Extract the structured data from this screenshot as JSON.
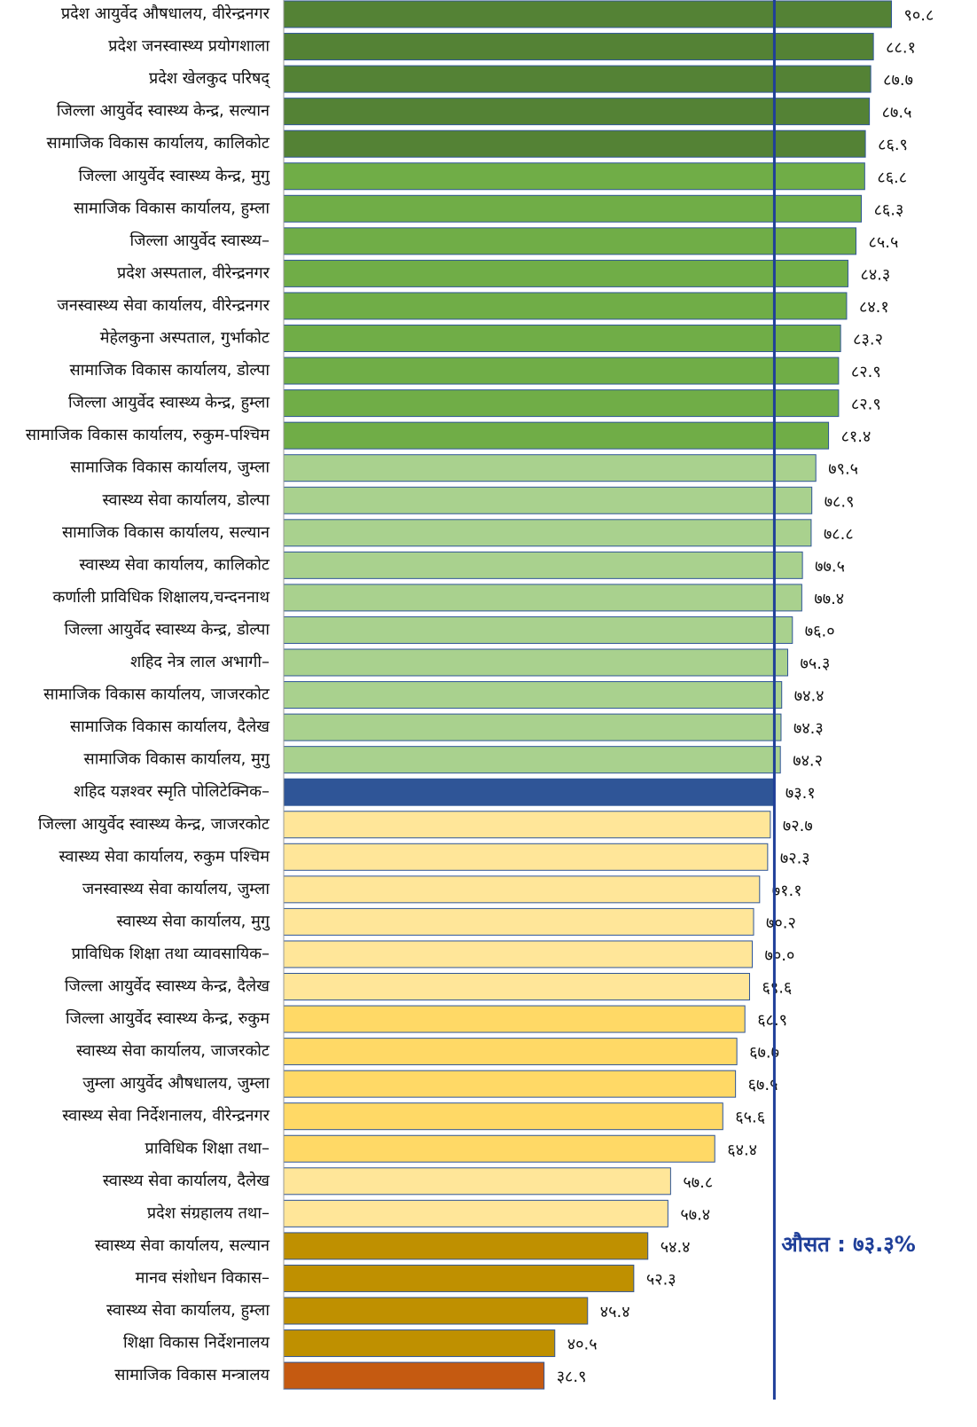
{
  "chart_data": {
    "type": "barh",
    "categories": [
      "प्रदेश आयुर्वेद औषधालय, वीरेन्द्रनगर",
      "प्रदेश जनस्वास्थ्य प्रयोगशाला",
      "प्रदेश खेलकुद परिषद्",
      "जिल्ला आयुर्वेद स्वास्थ्य केन्द्र, सल्यान",
      "सामाजिक विकास कार्यालय, कालिकोट",
      "जिल्ला आयुर्वेद स्वास्थ्य केन्द्र, मुगु",
      "सामाजिक विकास कार्यालय, हुम्ला",
      "जिल्ला आयुर्वेद स्वास्थ्य–",
      "प्रदेश अस्पताल, वीरेन्द्रनगर",
      "जनस्वास्थ्य सेवा कार्यालय, वीरेन्द्रनगर",
      "मेहेलकुना अस्पताल, गुर्भाकोट",
      "सामाजिक विकास कार्यालय, डोल्पा",
      "जिल्ला आयुर्वेद स्वास्थ्य केन्द्र, हुम्ला",
      "सामाजिक विकास कार्यालय, रुकुम-पश्चिम",
      "सामाजिक विकास कार्यालय, जुम्ला",
      "स्वास्थ्य सेवा कार्यालय, डोल्पा",
      "सामाजिक विकास कार्यालय, सल्यान",
      "स्वास्थ्य सेवा कार्यालय, कालिकोट",
      "कर्णाली प्राविधिक शिक्षालय,चन्दननाथ",
      "जिल्ला आयुर्वेद स्वास्थ्य केन्द्र, डोल्पा",
      "शहिद नेत्र लाल अभागी–",
      "सामाजिक विकास कार्यालय, जाजरकोट",
      "सामाजिक विकास कार्यालय, दैलेख",
      "सामाजिक विकास कार्यालय, मुगु",
      "शहिद यज्ञश्वर स्मृति पोलिटेक्निक–",
      "जिल्ला आयुर्वेद स्वास्थ्य केन्द्र, जाजरकोट",
      "स्वास्थ्य सेवा कार्यालय, रुकुम पश्चिम",
      "जनस्वास्थ्य सेवा कार्यालय, जुम्ला",
      "स्वास्थ्य सेवा कार्यालय, मुगु",
      "प्राविधिक शिक्षा तथा व्यावसायिक–",
      "जिल्ला आयुर्वेद स्वास्थ्य केन्द्र, दैलेख",
      "जिल्ला आयुर्वेद स्वास्थ्य केन्द्र, रुकुम",
      "स्वास्थ्य सेवा कार्यालय, जाजरकोट",
      "जुम्ला आयुर्वेद औषधालय, जुम्ला",
      "स्वास्थ्य सेवा निर्देशनालय, वीरेन्द्रनगर",
      "प्राविधिक शिक्षा तथा–",
      "स्वास्थ्य सेवा कार्यालय, दैलेख",
      "प्रदेश संग्रहालय तथा–",
      "स्वास्थ्य सेवा कार्यालय, सल्यान",
      "मानव संशोधन विकास–",
      "स्वास्थ्य सेवा कार्यालय, हुम्ला",
      "शिक्षा विकास निर्देशनालय",
      "सामाजिक विकास मन्त्रालय"
    ],
    "values": [
      90.8,
      88.1,
      87.7,
      87.5,
      86.9,
      86.8,
      86.3,
      85.5,
      84.3,
      84.1,
      83.2,
      82.9,
      82.9,
      81.4,
      79.5,
      78.9,
      78.8,
      77.5,
      77.4,
      76.0,
      75.3,
      74.4,
      74.3,
      74.2,
      73.1,
      72.7,
      72.3,
      71.1,
      70.2,
      70.0,
      69.6,
      68.9,
      67.7,
      67.5,
      65.6,
      64.4,
      57.8,
      57.4,
      54.4,
      52.3,
      45.4,
      40.5,
      38.9
    ],
    "value_labels": [
      "९०.८",
      "८८.१",
      "८७.७",
      "८७.५",
      "८६.९",
      "८६.८",
      "८६.३",
      "८५.५",
      "८४.३",
      "८४.१",
      "८३.२",
      "८२.९",
      "८२.९",
      "८१.४",
      "७९.५",
      "७८.९",
      "७८.८",
      "७७.५",
      "७७.४",
      "७६.०",
      "७५.३",
      "७४.४",
      "७४.३",
      "७४.२",
      "७३.१",
      "७२.७",
      "७२.३",
      "७१.१",
      "७०.२",
      "७०.०",
      "६९.६",
      "६८.९",
      "६७.७",
      "६७.५",
      "६५.६",
      "६४.४",
      "५७.८",
      "५७.४",
      "५४.४",
      "५२.३",
      "४५.४",
      "४०.५",
      "३८.९"
    ],
    "colors": [
      "#548235",
      "#548235",
      "#548235",
      "#548235",
      "#548235",
      "#70ad47",
      "#70ad47",
      "#70ad47",
      "#70ad47",
      "#70ad47",
      "#70ad47",
      "#70ad47",
      "#70ad47",
      "#70ad47",
      "#a9d18e",
      "#a9d18e",
      "#a9d18e",
      "#a9d18e",
      "#a9d18e",
      "#a9d18e",
      "#a9d18e",
      "#a9d18e",
      "#a9d18e",
      "#a9d18e",
      "#2f5597",
      "#ffe699",
      "#ffe699",
      "#ffe699",
      "#ffe699",
      "#ffe699",
      "#ffe699",
      "#ffd966",
      "#ffd966",
      "#ffd966",
      "#ffd966",
      "#ffd966",
      "#ffe699",
      "#ffe699",
      "#bf9000",
      "#bf9000",
      "#bf9000",
      "#bf9000",
      "#c55a11"
    ],
    "xlim": [
      0,
      100
    ],
    "average": {
      "value": 73.3,
      "label": "औसत : ७३.३%",
      "color": "#1f3f99"
    }
  }
}
